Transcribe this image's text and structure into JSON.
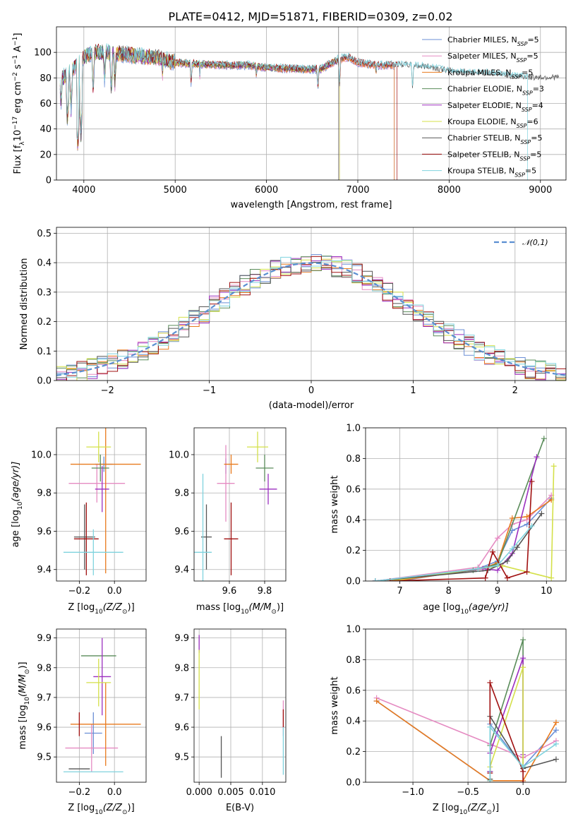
{
  "figure": {
    "title": "PLATE=0412, MJD=51871, FIBERID=0309, z=0.02"
  },
  "series_styles": [
    {
      "key": "chabrier_miles",
      "label_main": "Chabrier MILES, N",
      "label_sub": "SSP",
      "label_end": "=5",
      "color": "#6b8fd6"
    },
    {
      "key": "salpeter_miles",
      "label_main": "Salpeter MILES, N",
      "label_sub": "SSP",
      "label_end": "=5",
      "color": "#e58bc2"
    },
    {
      "key": "kroupa_miles",
      "label_main": "Kroupa MILES, N",
      "label_sub": "SSP",
      "label_end": "=5",
      "color": "#e87a1e"
    },
    {
      "key": "chabrier_elodie",
      "label_main": "Chabrier ELODIE, N",
      "label_sub": "SSP",
      "label_end": "=3",
      "color": "#5a8c5a"
    },
    {
      "key": "salpeter_elodie",
      "label_main": "Salpeter ELODIE, N",
      "label_sub": "SSP",
      "label_end": "=4",
      "color": "#9b2fbf"
    },
    {
      "key": "kroupa_elodie",
      "label_main": "Kroupa ELODIE, N",
      "label_sub": "SSP",
      "label_end": "=6",
      "color": "#d4e04a"
    },
    {
      "key": "chabrier_stelib",
      "label_main": "Chabrier STELIB, N",
      "label_sub": "SSP",
      "label_end": "=5",
      "color": "#555555"
    },
    {
      "key": "salpeter_stelib",
      "label_main": "Salpeter STELIB, N",
      "label_sub": "SSP",
      "label_end": "=5",
      "color": "#a01010"
    },
    {
      "key": "kroupa_stelib",
      "label_main": "Kroupa STELIB, N",
      "label_sub": "SSP",
      "label_end": "=5",
      "color": "#7fd3de"
    }
  ],
  "chart_data": [
    {
      "id": "spectrum",
      "type": "line",
      "xlabel": "wavelength [Angstrom, rest frame]",
      "ylabel_parts": [
        "Flux [f",
        "λ",
        "10",
        "−17",
        " erg cm",
        "−2",
        " s",
        "−1",
        " A",
        "−1",
        "]"
      ],
      "xlim": [
        3700,
        9280
      ],
      "ylim": [
        0,
        120
      ],
      "xticks": [
        4000,
        5000,
        6000,
        7000,
        8000,
        9000
      ],
      "yticks": [
        0,
        20,
        40,
        60,
        80,
        100
      ],
      "continuum": [
        [
          3740,
          78
        ],
        [
          3800,
          82
        ],
        [
          3900,
          88
        ],
        [
          4000,
          96
        ],
        [
          4100,
          100
        ],
        [
          4300,
          100
        ],
        [
          4500,
          98
        ],
        [
          4800,
          96
        ],
        [
          5000,
          92
        ],
        [
          5200,
          91
        ],
        [
          5500,
          90
        ],
        [
          5800,
          90
        ],
        [
          6000,
          88
        ],
        [
          6300,
          87
        ],
        [
          6600,
          87
        ],
        [
          6800,
          95
        ],
        [
          6900,
          96
        ],
        [
          7000,
          92
        ],
        [
          7200,
          90
        ],
        [
          7500,
          90
        ],
        [
          7800,
          88
        ],
        [
          8000,
          85
        ],
        [
          8300,
          84
        ],
        [
          8500,
          83
        ],
        [
          8700,
          81
        ],
        [
          8900,
          80
        ],
        [
          9000,
          80
        ],
        [
          9200,
          80
        ]
      ],
      "absorption_lines": [
        [
          3750,
          58
        ],
        [
          3820,
          46
        ],
        [
          3860,
          55
        ],
        [
          3934,
          25
        ],
        [
          3968,
          35
        ],
        [
          4102,
          70
        ],
        [
          4227,
          78
        ],
        [
          4300,
          70
        ],
        [
          4340,
          76
        ],
        [
          4861,
          82
        ],
        [
          5175,
          75
        ],
        [
          5270,
          82
        ],
        [
          5890,
          80
        ],
        [
          6563,
          70
        ],
        [
          6800,
          75
        ],
        [
          7200,
          82
        ],
        [
          7600,
          70
        ]
      ],
      "model_lines_end": [
        {
          "series": "chabrier_miles",
          "end": 7400
        },
        {
          "series": "salpeter_miles",
          "end": 7400
        },
        {
          "series": "kroupa_miles",
          "end": 7400
        },
        {
          "series": "chabrier_elodie",
          "end": 6800
        },
        {
          "series": "salpeter_elodie",
          "end": 6800
        },
        {
          "series": "kroupa_elodie",
          "end": 6800
        },
        {
          "series": "chabrier_stelib",
          "end": 9200
        },
        {
          "series": "salpeter_stelib",
          "end": 7430
        },
        {
          "series": "kroupa_stelib",
          "end": 8860
        }
      ]
    },
    {
      "id": "residual-hist",
      "type": "histogram",
      "xlabel": "(data-model)/error",
      "ylabel": "Normed distribution",
      "xlim": [
        -2.5,
        2.5
      ],
      "ylim": [
        0,
        0.52
      ],
      "xticks": [
        -2,
        -1,
        0,
        1,
        2
      ],
      "yticks": [
        0.0,
        0.1,
        0.2,
        0.3,
        0.4,
        0.5
      ],
      "bin_width": 0.1,
      "reference_curve": {
        "label": "𝒩(0,1)",
        "color": "#5b8fd1"
      }
    },
    {
      "id": "age-vs-Z",
      "type": "errorbar",
      "xlabel_parts": [
        "Z [log",
        "10",
        "(Z/Z",
        "⊙",
        ")]"
      ],
      "ylabel_parts": [
        "age  [log",
        "10",
        "(age/yr)]"
      ],
      "xlim": [
        -0.33,
        0.18
      ],
      "ylim": [
        9.34,
        10.14
      ],
      "xticks": [
        -0.2,
        0.0
      ],
      "yticks": [
        9.4,
        9.6,
        9.8,
        10.0
      ],
      "points": [
        {
          "series": "chabrier_miles",
          "x": -0.06,
          "y": 9.95,
          "xerr": 0.05,
          "yerr": 0.04
        },
        {
          "series": "salpeter_miles",
          "x": -0.1,
          "y": 9.85,
          "xerr": 0.16,
          "yerr": 0.1
        },
        {
          "series": "kroupa_miles",
          "x": -0.05,
          "y": 9.95,
          "xerr": 0.2,
          "yerr": 0.57
        },
        {
          "series": "chabrier_elodie",
          "x": -0.08,
          "y": 9.93,
          "xerr": 0.05,
          "yerr": 0.07
        },
        {
          "series": "salpeter_elodie",
          "x": -0.07,
          "y": 9.82,
          "xerr": 0.04,
          "yerr": 0.12
        },
        {
          "series": "kroupa_elodie",
          "x": -0.09,
          "y": 10.04,
          "xerr": 0.07,
          "yerr": 0.08
        },
        {
          "series": "chabrier_stelib",
          "x": -0.17,
          "y": 9.57,
          "xerr": 0.06,
          "yerr": 0.17
        },
        {
          "series": "salpeter_stelib",
          "x": -0.16,
          "y": 9.56,
          "xerr": 0.07,
          "yerr": 0.19
        },
        {
          "series": "kroupa_stelib",
          "x": -0.12,
          "y": 9.49,
          "xerr": 0.17,
          "yerr": 0.12
        }
      ]
    },
    {
      "id": "age-vs-mass",
      "type": "errorbar",
      "xlabel_parts": [
        "mass [log",
        "10",
        "(M/M",
        "⊙",
        ")]"
      ],
      "ylabel_parts": [],
      "xlim": [
        9.4,
        9.92
      ],
      "ylim": [
        9.34,
        10.14
      ],
      "xticks": [
        9.6,
        9.8
      ],
      "yticks": [
        9.4,
        9.6,
        9.8,
        10.0
      ],
      "points": [
        {
          "series": "chabrier_miles",
          "x": 9.58,
          "y": 9.94,
          "xerr": 0.0,
          "yerr": 0.04
        },
        {
          "series": "salpeter_miles",
          "x": 9.58,
          "y": 9.85,
          "xerr": 0.05,
          "yerr": 0.2
        },
        {
          "series": "kroupa_miles",
          "x": 9.61,
          "y": 9.95,
          "xerr": 0.04,
          "yerr": 0.05
        },
        {
          "series": "chabrier_elodie",
          "x": 9.8,
          "y": 9.93,
          "xerr": 0.05,
          "yerr": 0.07
        },
        {
          "series": "salpeter_elodie",
          "x": 9.82,
          "y": 9.82,
          "xerr": 0.05,
          "yerr": 0.08
        },
        {
          "series": "kroupa_elodie",
          "x": 9.76,
          "y": 10.04,
          "xerr": 0.06,
          "yerr": 0.08
        },
        {
          "series": "chabrier_stelib",
          "x": 9.47,
          "y": 9.57,
          "xerr": 0.03,
          "yerr": 0.17
        },
        {
          "series": "salpeter_stelib",
          "x": 9.61,
          "y": 9.56,
          "xerr": 0.04,
          "yerr": 0.19
        },
        {
          "series": "kroupa_stelib",
          "x": 9.45,
          "y": 9.49,
          "xerr": 0.05,
          "yerr": 0.41
        }
      ]
    },
    {
      "id": "weight-vs-age",
      "type": "line",
      "xlabel_parts": [
        "age  [log",
        "10",
        "(age/yr)]"
      ],
      "ylabel": "mass weight",
      "xlim": [
        6.3,
        10.4
      ],
      "ylim": [
        0,
        1.0
      ],
      "xticks": [
        7,
        8,
        9,
        10
      ],
      "yticks": [
        0.0,
        0.2,
        0.4,
        0.6,
        0.8,
        1.0
      ],
      "series": [
        {
          "series": "chabrier_miles",
          "x": [
            7.0,
            8.6,
            9.0,
            9.3,
            9.6,
            10.1
          ],
          "y": [
            0.0,
            0.08,
            0.13,
            0.33,
            0.37,
            0.54
          ]
        },
        {
          "series": "salpeter_miles",
          "x": [
            6.5,
            8.6,
            9.0,
            9.3,
            9.6,
            10.1
          ],
          "y": [
            0.0,
            0.09,
            0.28,
            0.37,
            0.4,
            0.56
          ]
        },
        {
          "series": "kroupa_miles",
          "x": [
            6.9,
            8.7,
            9.0,
            9.3,
            9.6,
            10.1
          ],
          "y": [
            0.0,
            0.08,
            0.12,
            0.41,
            0.42,
            0.53
          ]
        },
        {
          "series": "chabrier_elodie",
          "x": [
            6.5,
            8.5,
            9.0,
            9.95
          ],
          "y": [
            0.0,
            0.07,
            0.11,
            0.93
          ]
        },
        {
          "series": "salpeter_elodie",
          "x": [
            6.5,
            8.7,
            9.0,
            9.3,
            9.8
          ],
          "y": [
            0.0,
            0.08,
            0.07,
            0.18,
            0.81
          ]
        },
        {
          "series": "kroupa_elodie",
          "x": [
            6.8,
            8.6,
            9.1,
            10.1,
            10.15
          ],
          "y": [
            0.0,
            0.08,
            0.1,
            0.02,
            0.75
          ]
        },
        {
          "series": "chabrier_stelib",
          "x": [
            6.5,
            8.8,
            9.2,
            9.4,
            9.9
          ],
          "y": [
            0.0,
            0.07,
            0.13,
            0.22,
            0.44
          ]
        },
        {
          "series": "salpeter_stelib",
          "x": [
            6.8,
            8.75,
            8.9,
            9.2,
            9.6,
            9.7
          ],
          "y": [
            0.0,
            0.02,
            0.19,
            0.02,
            0.06,
            0.65
          ]
        },
        {
          "series": "kroupa_stelib",
          "x": [
            6.5,
            8.6,
            9.0,
            9.3,
            9.7
          ],
          "y": [
            0.0,
            0.08,
            0.1,
            0.21,
            0.36
          ]
        }
      ]
    },
    {
      "id": "mass-vs-Z",
      "type": "errorbar",
      "xlabel_parts": [
        "Z [log",
        "10",
        "(Z/Z",
        "⊙",
        ")]"
      ],
      "ylabel_parts": [
        "mass [log",
        "10",
        "(M/M",
        "⊙",
        ")]"
      ],
      "xlim": [
        -0.33,
        0.18
      ],
      "ylim": [
        9.415,
        9.93
      ],
      "xticks": [
        -0.2,
        0.0
      ],
      "yticks": [
        9.5,
        9.6,
        9.7,
        9.8,
        9.9
      ],
      "points": [
        {
          "series": "chabrier_miles",
          "x": -0.12,
          "y": 9.58,
          "xerr": 0.05,
          "yerr": 0.07
        },
        {
          "series": "salpeter_miles",
          "x": -0.13,
          "y": 9.53,
          "xerr": 0.15,
          "yerr": 0.08
        },
        {
          "series": "kroupa_miles",
          "x": -0.05,
          "y": 9.61,
          "xerr": 0.2,
          "yerr": 0.14
        },
        {
          "series": "chabrier_elodie",
          "x": -0.09,
          "y": 9.84,
          "xerr": 0.1,
          "yerr": 0.0
        },
        {
          "series": "salpeter_elodie",
          "x": -0.07,
          "y": 9.77,
          "xerr": 0.05,
          "yerr": 0.13
        },
        {
          "series": "kroupa_elodie",
          "x": -0.09,
          "y": 9.75,
          "xerr": 0.07,
          "yerr": 0.08
        },
        {
          "series": "chabrier_stelib",
          "x": -0.2,
          "y": 9.46,
          "xerr": 0.06,
          "yerr": 0.0
        },
        {
          "series": "salpeter_stelib",
          "x": -0.2,
          "y": 9.61,
          "xerr": 0.0,
          "yerr": 0.04
        },
        {
          "series": "kroupa_stelib",
          "x": -0.12,
          "y": 9.45,
          "xerr": 0.17,
          "yerr": 0.0
        }
      ]
    },
    {
      "id": "mass-vs-ebv",
      "type": "errorbar",
      "xlabel": "E(B-V)",
      "ylabel_parts": [],
      "xlim": [
        -0.0008,
        0.0137
      ],
      "ylim": [
        9.415,
        9.93
      ],
      "xticks": [
        0.0,
        0.005,
        0.01
      ],
      "xtick_labels": [
        "0.000",
        "0.005",
        "0.010"
      ],
      "yticks": [
        9.5,
        9.6,
        9.7,
        9.8,
        9.9
      ],
      "points": [
        {
          "series": "salpeter_elodie",
          "x": 0.0,
          "y": 9.88,
          "xerr": 0.0,
          "yerr": 0.03
        },
        {
          "series": "kroupa_elodie",
          "x": 0.0,
          "y": 9.76,
          "xerr": 0.0,
          "yerr": 0.1
        },
        {
          "series": "chabrier_stelib",
          "x": 0.0035,
          "y": 9.5,
          "xerr": 0.0,
          "yerr": 0.07
        },
        {
          "series": "salpeter_miles",
          "x": 0.0133,
          "y": 9.63,
          "xerr": 0.0,
          "yerr": 0.06
        },
        {
          "series": "salpeter_stelib",
          "x": 0.0133,
          "y": 9.63,
          "xerr": 0.0,
          "yerr": 0.03
        },
        {
          "series": "kroupa_stelib",
          "x": 0.0133,
          "y": 9.52,
          "xerr": 0.0,
          "yerr": 0.08
        }
      ]
    },
    {
      "id": "weight-vs-Z",
      "type": "line",
      "xlabel_parts": [
        "Z [log",
        "10",
        "(Z/Z",
        "⊙",
        ")]"
      ],
      "ylabel": "mass weight",
      "xlim": [
        -1.43,
        0.39
      ],
      "ylim": [
        0,
        1.0
      ],
      "xticks": [
        -1.0,
        -0.5,
        0.0
      ],
      "xtick_labels": [
        "−1.0",
        "−0.5",
        "0.0"
      ],
      "yticks": [
        0.0,
        0.2,
        0.4,
        0.6,
        0.8,
        1.0
      ],
      "series": [
        {
          "series": "chabrier_miles",
          "x": [
            -1.33,
            -0.3,
            -0.3,
            0.0,
            0.3
          ],
          "y": [
            0.53,
            0.01,
            0.38,
            0.1,
            0.34
          ]
        },
        {
          "series": "salpeter_miles",
          "x": [
            -1.33,
            -0.3,
            0.0,
            0.3
          ],
          "y": [
            0.55,
            0.25,
            0.16,
            0.27
          ]
        },
        {
          "series": "kroupa_miles",
          "x": [
            -1.33,
            -0.3,
            0.0,
            0.3
          ],
          "y": [
            0.53,
            0.01,
            0.01,
            0.39
          ]
        },
        {
          "series": "chabrier_elodie",
          "x": [
            -0.3,
            -0.3,
            0.0,
            0.0
          ],
          "y": [
            0.07,
            0.24,
            0.93,
            0.1
          ]
        },
        {
          "series": "salpeter_elodie",
          "x": [
            -0.3,
            -0.3,
            0.0,
            0.0
          ],
          "y": [
            0.07,
            0.19,
            0.81,
            0.18
          ]
        },
        {
          "series": "kroupa_elodie",
          "x": [
            -0.3,
            -0.3,
            0.0,
            0.0
          ],
          "y": [
            0.02,
            0.1,
            0.75,
            0.1
          ]
        },
        {
          "series": "chabrier_stelib",
          "x": [
            -0.3,
            -0.3,
            0.0,
            0.3
          ],
          "y": [
            0.02,
            0.43,
            0.09,
            0.15
          ]
        },
        {
          "series": "salpeter_stelib",
          "x": [
            -0.3,
            -0.3,
            0.0,
            0.0
          ],
          "y": [
            0.06,
            0.65,
            0.07,
            0.0
          ]
        },
        {
          "series": "kroupa_stelib",
          "x": [
            -0.3,
            -0.3,
            0.0,
            0.3
          ],
          "y": [
            0.01,
            0.36,
            0.1,
            0.25
          ]
        }
      ]
    }
  ]
}
